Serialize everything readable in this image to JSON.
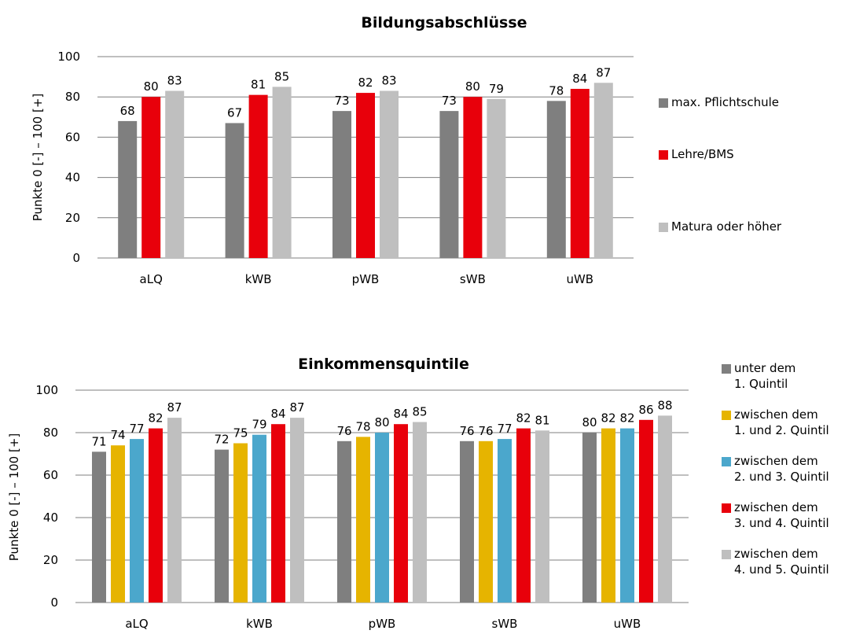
{
  "chart_data": [
    {
      "type": "bar",
      "title": "Bildungsabschlüsse",
      "ylabel": "Punkte 0 [-] – 100 [+]",
      "xlabel": "",
      "ylim": [
        0,
        100
      ],
      "yticks": [
        "0",
        "20",
        "40",
        "60",
        "80",
        "100"
      ],
      "grid": true,
      "legend_position": "right",
      "categories": [
        "aLQ",
        "kWB",
        "pWB",
        "sWB",
        "uWB"
      ],
      "series": [
        {
          "name": "max. Pflichtschule",
          "color": "#7f7f7f",
          "values": [
            68,
            67,
            73,
            73,
            78
          ],
          "labels": [
            "68",
            "67",
            "73",
            "73",
            "78"
          ]
        },
        {
          "name": "Lehre/BMS",
          "color": "#e8000b",
          "values": [
            80,
            81,
            82,
            80,
            84
          ],
          "labels": [
            "80",
            "81",
            "82",
            "80",
            "84"
          ]
        },
        {
          "name": "Matura oder höher",
          "color": "#bfbfbf",
          "values": [
            83,
            85,
            83,
            79,
            87
          ],
          "labels": [
            "83",
            "85",
            "83",
            "79",
            "87"
          ]
        }
      ]
    },
    {
      "type": "bar",
      "title": "Einkommensquintile",
      "ylabel": "Punkte 0 [-] – 100 [+]",
      "xlabel": "",
      "ylim": [
        0,
        100
      ],
      "yticks": [
        "0",
        "20",
        "40",
        "60",
        "80",
        "100"
      ],
      "grid": true,
      "legend_position": "right",
      "categories": [
        "aLQ",
        "kWB",
        "pWB",
        "sWB",
        "uWB"
      ],
      "series": [
        {
          "name": "unter dem\n1. Quintil",
          "color": "#7f7f7f",
          "values": [
            71,
            72,
            76,
            76,
            80
          ],
          "labels": [
            "71",
            "72",
            "76",
            "76",
            "80"
          ]
        },
        {
          "name": "zwischen dem\n1. und 2. Quintil",
          "color": "#e6b400",
          "values": [
            74,
            75,
            78,
            76,
            82
          ],
          "labels": [
            "74",
            "75",
            "78",
            "76",
            "82"
          ]
        },
        {
          "name": "zwischen dem\n2. und 3. Quintil",
          "color": "#4ba7cc",
          "values": [
            77,
            79,
            80,
            77,
            82
          ],
          "labels": [
            "77",
            "79",
            "80",
            "77",
            "82"
          ]
        },
        {
          "name": "zwischen dem\n3. und 4. Quintil",
          "color": "#e8000b",
          "values": [
            82,
            84,
            84,
            82,
            86
          ],
          "labels": [
            "82",
            "84",
            "84",
            "82",
            "86"
          ]
        },
        {
          "name": "zwischen dem\n4. und 5. Quintil",
          "color": "#bfbfbf",
          "values": [
            87,
            87,
            85,
            81,
            88
          ],
          "labels": [
            "87",
            "87",
            "85",
            "81",
            "88"
          ]
        }
      ]
    }
  ]
}
